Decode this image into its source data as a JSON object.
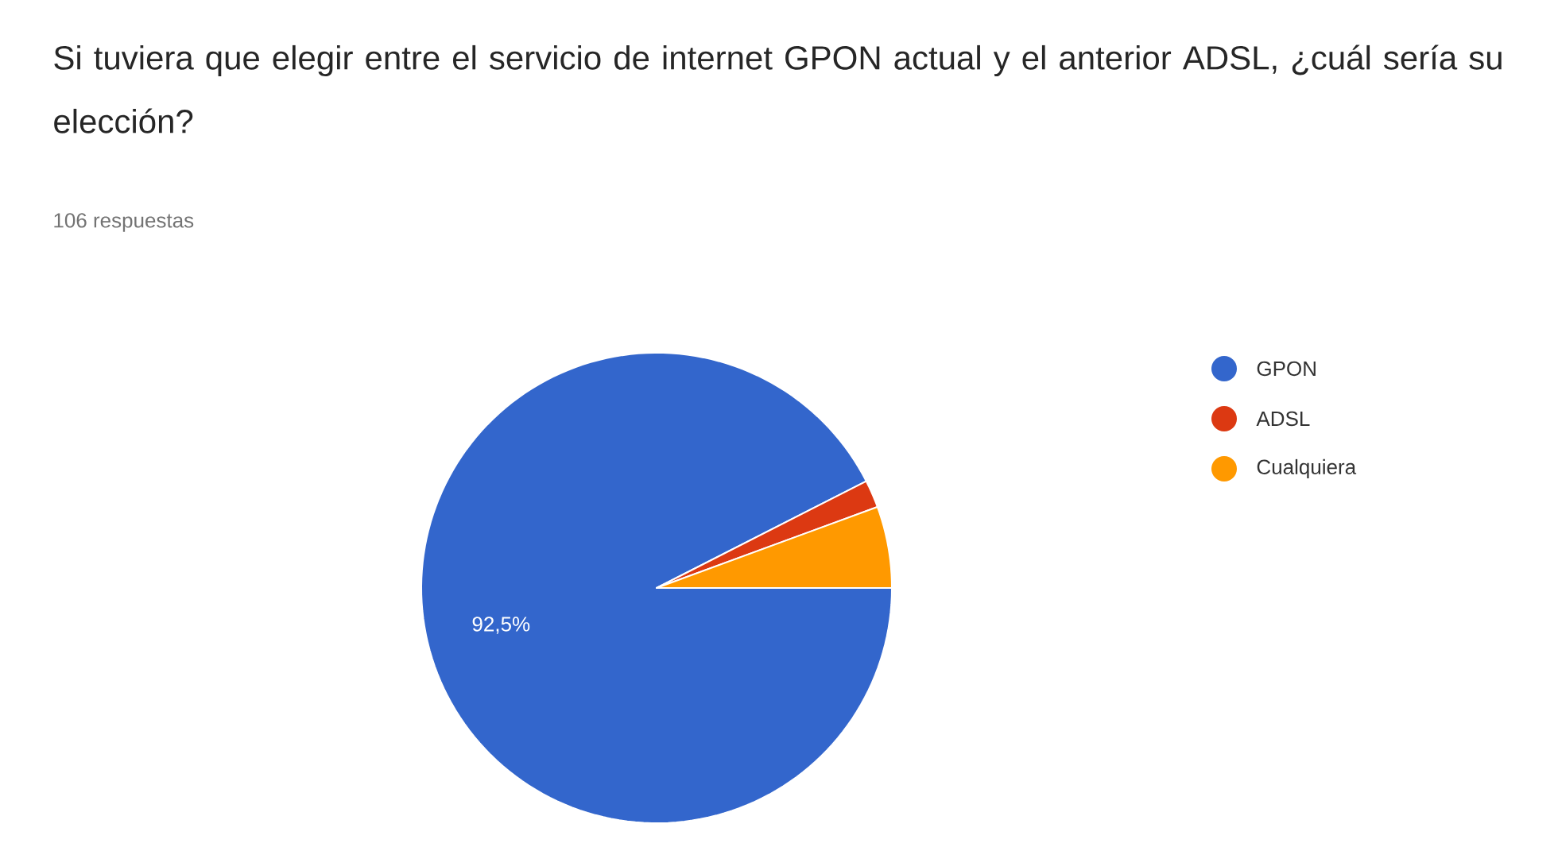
{
  "chart_data": {
    "type": "pie",
    "title": "Si tuviera que elegir entre el servicio de internet GPON actual y el anterior ADSL, ¿cuál sería su elección?",
    "subtitle": "106 respuestas",
    "categories": [
      "GPON",
      "ADSL",
      "Cualquiera"
    ],
    "values": [
      92.5,
      1.9,
      5.6
    ],
    "colors": [
      "#3366cc",
      "#dc3912",
      "#ff9900"
    ],
    "value_labels": [
      "92,5%",
      null,
      null
    ],
    "legend": "right"
  }
}
